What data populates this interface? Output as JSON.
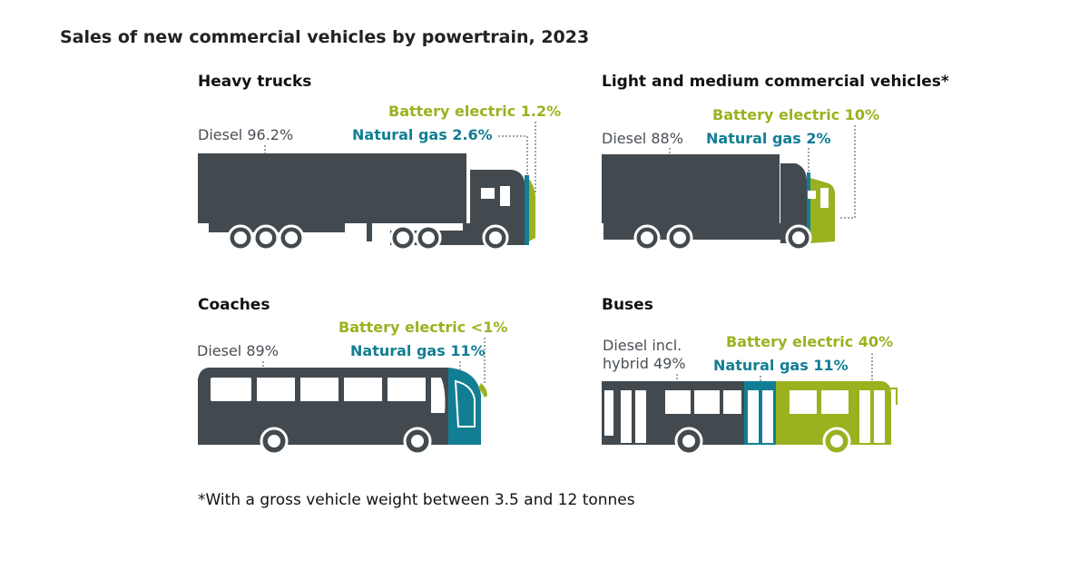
{
  "colors": {
    "diesel": "#434a4f",
    "natural_gas": "#127e93",
    "battery_electric": "#9ab21f"
  },
  "title": "Sales of new commercial vehicles by powertrain, 2023",
  "footnote": "*With a gross vehicle weight between 3.5 and 12 tonnes",
  "chart_data": [
    {
      "type": "bar",
      "title": "Heavy trucks",
      "categories": [
        "Diesel",
        "Natural gas",
        "Battery electric"
      ],
      "values": [
        96.2,
        2.6,
        1.2
      ],
      "labels": [
        "96.2%",
        "2.6%",
        "1.2%"
      ],
      "unit": "%"
    },
    {
      "type": "bar",
      "title": "Light and medium commercial vehicles*",
      "categories": [
        "Diesel",
        "Natural gas",
        "Battery electric"
      ],
      "values": [
        88,
        2,
        10
      ],
      "labels": [
        "88%",
        "2%",
        "10%"
      ],
      "unit": "%"
    },
    {
      "type": "bar",
      "title": "Coaches",
      "categories": [
        "Diesel",
        "Natural gas",
        "Battery electric"
      ],
      "values": [
        89,
        11,
        1
      ],
      "labels": [
        "89%",
        "11%",
        "<1%"
      ],
      "unit": "%"
    },
    {
      "type": "bar",
      "title": "Buses",
      "categories": [
        "Diesel incl. hybrid",
        "Natural gas",
        "Battery electric"
      ],
      "values": [
        49,
        11,
        40
      ],
      "labels": [
        "49%",
        "11%",
        "40%"
      ],
      "unit": "%"
    }
  ]
}
